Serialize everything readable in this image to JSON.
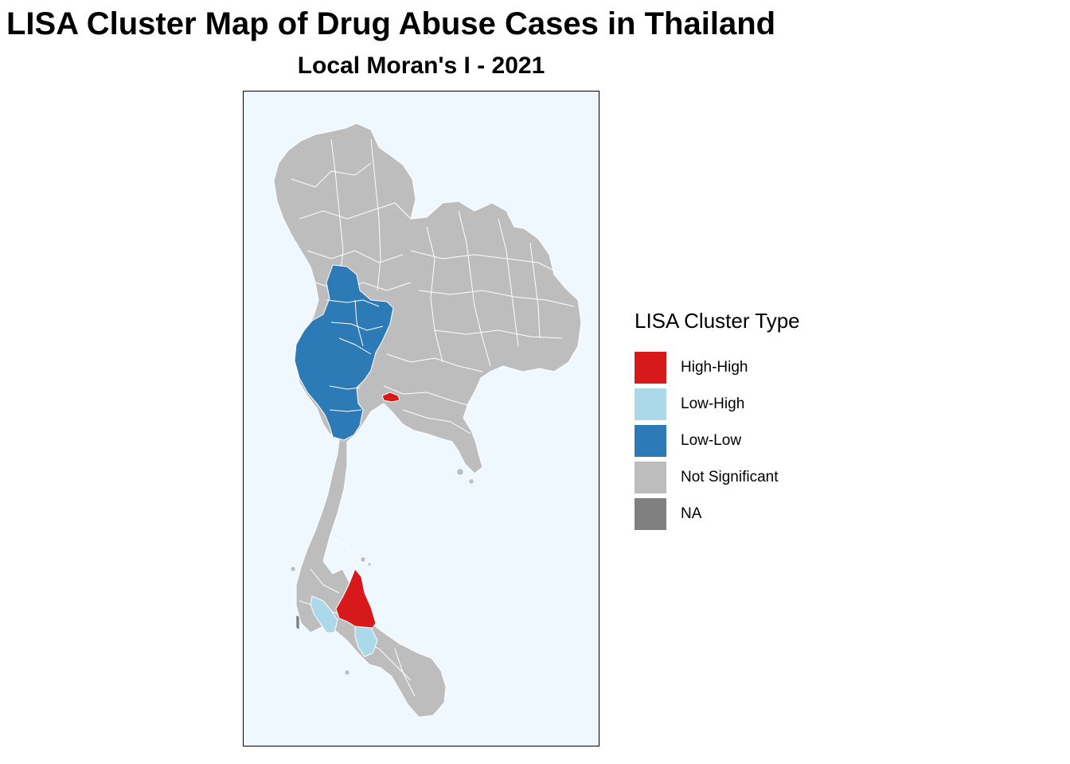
{
  "title": "LISA Cluster Map of Drug Abuse Cases in Thailand",
  "subtitle": "Local Moran's I - 2021",
  "legend": {
    "title": "LISA Cluster Type",
    "items": [
      {
        "label": "High-High",
        "color": "#d7191c"
      },
      {
        "label": "Low-High",
        "color": "#abd9e9"
      },
      {
        "label": "Low-Low",
        "color": "#2c7bb6"
      },
      {
        "label": "Not Significant",
        "color": "#bdbdbd"
      },
      {
        "label": "NA",
        "color": "#808080"
      }
    ]
  },
  "map": {
    "background_color": "#f0f8ff",
    "border_color": "#ffffff"
  }
}
